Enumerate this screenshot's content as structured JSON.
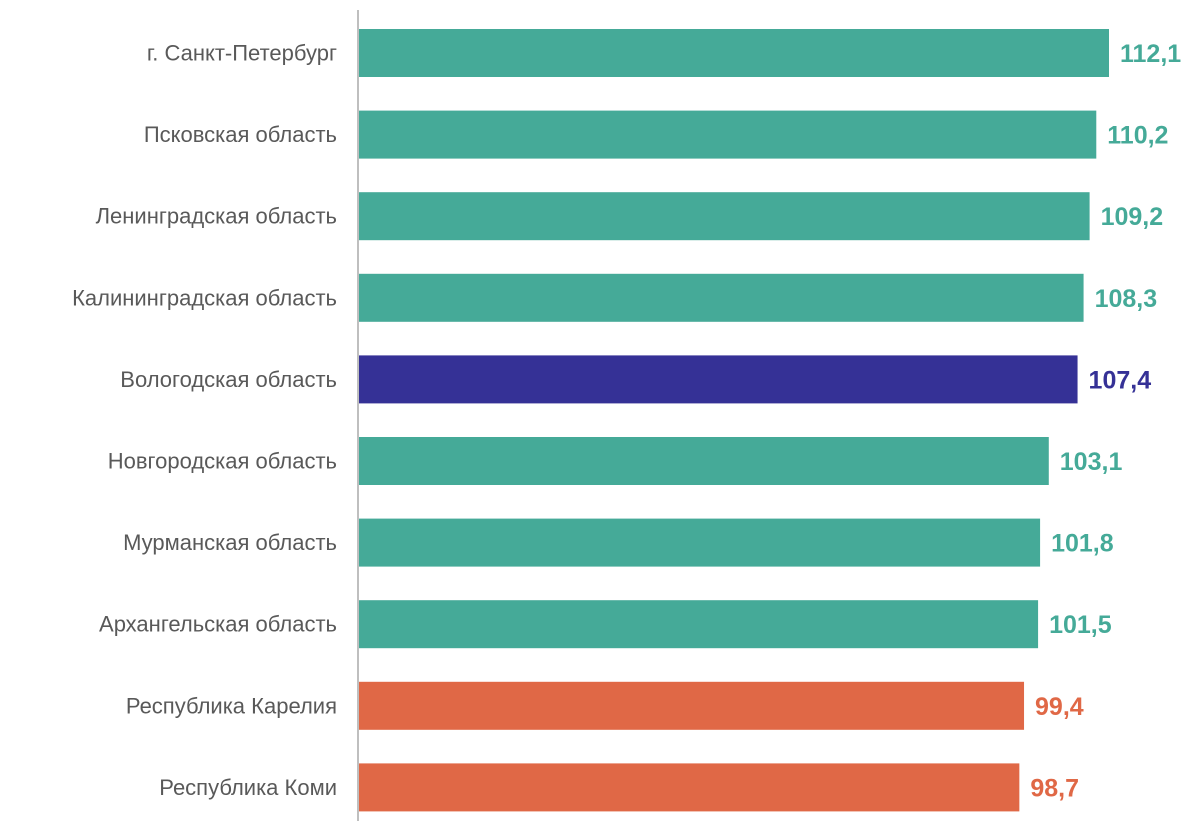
{
  "chart_data": {
    "type": "bar",
    "orientation": "horizontal",
    "categories": [
      "г. Санкт-Петербург",
      "Псковская область",
      "Ленинградская область",
      "Калининградская область",
      "Вологодская область",
      "Новгородская область",
      "Мурманская область",
      "Архангельская область",
      "Республика Карелия",
      "Республика Коми"
    ],
    "values": [
      112.1,
      110.2,
      109.2,
      108.3,
      107.4,
      103.1,
      101.8,
      101.5,
      99.4,
      98.7
    ],
    "value_labels": [
      "112,1",
      "110,2",
      "109,2",
      "108,3",
      "107,4",
      "103,1",
      "101,8",
      "101,5",
      "99,4",
      "98,7"
    ],
    "bar_colors": [
      "#45aa98",
      "#45aa98",
      "#45aa98",
      "#45aa98",
      "#353196",
      "#45aa98",
      "#45aa98",
      "#45aa98",
      "#e06846",
      "#e06846"
    ],
    "title": "",
    "xlabel": "",
    "ylabel": "",
    "xlim": [
      0,
      112.1
    ],
    "grid": false,
    "legend": "none"
  }
}
